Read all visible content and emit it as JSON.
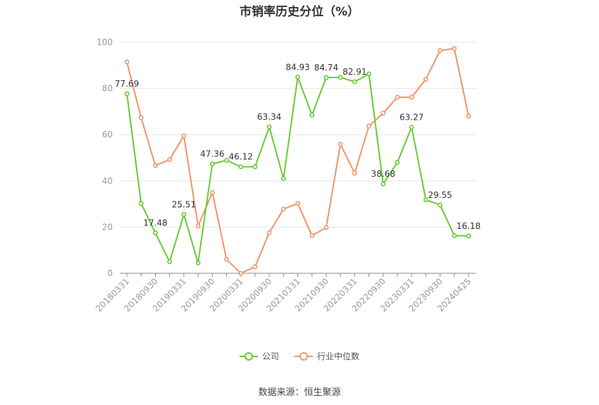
{
  "title": "市销率历史分位（%）",
  "source": "数据来源：恒生聚源",
  "colors": {
    "company": "#66cc33",
    "industry": "#f4936a",
    "grid": "#e6e6e6",
    "axis": "#888888"
  },
  "chart_data": {
    "type": "line",
    "title": "市销率历史分位（%）",
    "ylim": [
      0,
      100
    ],
    "yticks": [
      0,
      20,
      40,
      60,
      80,
      100
    ],
    "grid": true,
    "legend_position": "bottom",
    "x": [
      "20180331",
      "20180630",
      "20180930",
      "20181231",
      "20190331",
      "20190630",
      "20190930",
      "20191231",
      "20200331",
      "20200630",
      "20200930",
      "20201231",
      "20210331",
      "20210630",
      "20210930",
      "20211231",
      "20220331",
      "20220630",
      "20220930",
      "20221231",
      "20230331",
      "20230630",
      "20230930",
      "20231231",
      "20240425"
    ],
    "xtick_labels": [
      "20180331",
      "20180930",
      "20190331",
      "20190930",
      "20200331",
      "20200930",
      "20210331",
      "20210930",
      "20220331",
      "20220930",
      "20230331",
      "20230930",
      "20240425"
    ],
    "series": [
      {
        "name": "公司",
        "values": [
          77.69,
          30.2,
          17.48,
          5.0,
          25.51,
          4.5,
          47.36,
          48.9,
          46.12,
          46.1,
          63.34,
          41.0,
          84.93,
          68.5,
          84.74,
          84.8,
          82.91,
          86.3,
          38.68,
          48.0,
          63.27,
          31.8,
          29.55,
          16.3,
          16.18
        ],
        "labels": {
          "0": "77.69",
          "2": "17.48",
          "4": "25.51",
          "6": "47.36",
          "8": "46.12",
          "10": "63.34",
          "12": "84.93",
          "14": "84.74",
          "16": "82.91",
          "18": "38.68",
          "20": "63.27",
          "22": "29.55",
          "24": "16.18"
        }
      },
      {
        "name": "行业中位数",
        "values": [
          91.5,
          67.3,
          46.6,
          49.2,
          59.5,
          20.4,
          35.0,
          6.0,
          0.0,
          2.8,
          17.6,
          27.8,
          30.2,
          16.3,
          19.8,
          55.9,
          43.3,
          63.7,
          69.3,
          76.2,
          76.2,
          84.0,
          96.4,
          97.3,
          68.0
        ]
      }
    ]
  }
}
